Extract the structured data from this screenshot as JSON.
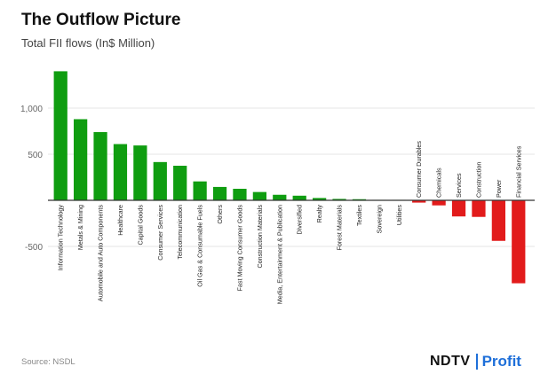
{
  "header": {
    "title": "The Outflow Picture",
    "subtitle": "Total FII flows (In$ Million)"
  },
  "footer": {
    "source": "Source: NSDL",
    "logo_left": "NDTV",
    "logo_right": "Profit"
  },
  "colors": {
    "positive": "#0f9d10",
    "negative": "#e21b1b",
    "grid": "#e6e6e6",
    "axis": "#333333"
  },
  "chart_data": {
    "type": "bar",
    "title": "The Outflow Picture",
    "subtitle": "Total FII flows (In$ Million)",
    "xlabel": "",
    "ylabel": "",
    "ylim": [
      -1000,
      1500
    ],
    "yticks": [
      -500,
      0,
      500,
      1000
    ],
    "ytick_labels": [
      "-500",
      "",
      "500",
      "1,000"
    ],
    "grid": true,
    "categories": [
      "Information Technology",
      "Metals & Mining",
      "Automobile and Auto Components",
      "Healthcare",
      "Capital Goods",
      "Consumer Services",
      "Telecommunication",
      "Oil Gas & Consumable Fuels",
      "Others",
      "Fast Moving Consumer Goods",
      "Construction Materials",
      "Media, Entertainment & Publication",
      "Diversified",
      "Realty",
      "Forest Materials",
      "Textiles",
      "Sovereign",
      "Utilities",
      "Consumer Durables",
      "Chemicals",
      "Services",
      "Construction",
      "Power",
      "Financial Services"
    ],
    "values": [
      1400,
      880,
      740,
      610,
      595,
      415,
      375,
      205,
      145,
      125,
      90,
      60,
      50,
      25,
      15,
      12,
      5,
      5,
      -25,
      -55,
      -175,
      -180,
      -440,
      -900
    ]
  }
}
